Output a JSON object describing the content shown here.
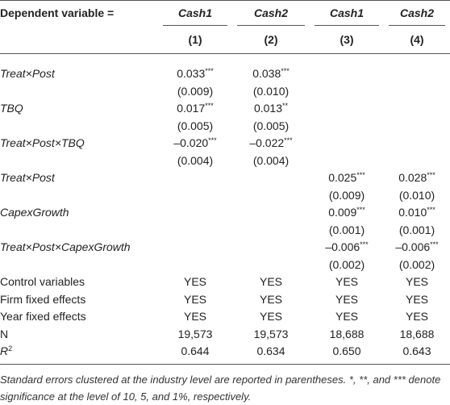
{
  "table": {
    "header": {
      "label": "Dependent variable =",
      "columns": [
        "Cash1",
        "Cash2",
        "Cash1",
        "Cash2"
      ],
      "numbers": [
        "(1)",
        "(2)",
        "(3)",
        "(4)"
      ]
    },
    "rows": [
      {
        "label": "Treat×Post",
        "italic": true,
        "cells": [
          "0.033***",
          "0.038***",
          null,
          null
        ]
      },
      {
        "label": null,
        "cells": [
          "(0.009)",
          "(0.010)",
          null,
          null
        ]
      },
      {
        "label": "TBQ",
        "italic": true,
        "cells": [
          "0.017***",
          "0.013**",
          null,
          null
        ]
      },
      {
        "label": null,
        "cells": [
          "(0.005)",
          "(0.005)",
          null,
          null
        ]
      },
      {
        "label": "Treat×Post×TBQ",
        "italic": true,
        "cells": [
          "–0.020***",
          "–0.022***",
          null,
          null
        ]
      },
      {
        "label": null,
        "cells": [
          "(0.004)",
          "(0.004)",
          null,
          null
        ]
      },
      {
        "label": "Treat×Post",
        "italic": true,
        "cells": [
          null,
          null,
          "0.025***",
          "0.028***"
        ]
      },
      {
        "label": null,
        "cells": [
          null,
          null,
          "(0.009)",
          "(0.010)"
        ]
      },
      {
        "label": "CapexGrowth",
        "italic": true,
        "cells": [
          null,
          null,
          "0.009***",
          "0.010***"
        ]
      },
      {
        "label": null,
        "cells": [
          null,
          null,
          "(0.001)",
          "(0.001)"
        ]
      },
      {
        "label": "Treat×Post×CapexGrowth",
        "italic": true,
        "cells": [
          null,
          null,
          "–0.006***",
          "–0.006***"
        ]
      },
      {
        "label": null,
        "cells": [
          null,
          null,
          "(0.002)",
          "(0.002)"
        ]
      },
      {
        "label": "Control variables",
        "cells": [
          "YES",
          "YES",
          "YES",
          "YES"
        ]
      },
      {
        "label": "Firm fixed effects",
        "cells": [
          "YES",
          "YES",
          "YES",
          "YES"
        ]
      },
      {
        "label": "Year fixed effects",
        "cells": [
          "YES",
          "YES",
          "YES",
          "YES"
        ]
      },
      {
        "label": "N",
        "cells": [
          "19,573",
          "19,573",
          "18,688",
          "18,688"
        ]
      },
      {
        "label": "R",
        "italic": true,
        "label_sup": "2",
        "cells": [
          "0.644",
          "0.634",
          "0.650",
          "0.643"
        ]
      }
    ]
  },
  "note": "Standard errors clustered at the industry level are reported in parentheses. *, **, and *** denote significance at the level of 10, 5, and 1%, respectively."
}
